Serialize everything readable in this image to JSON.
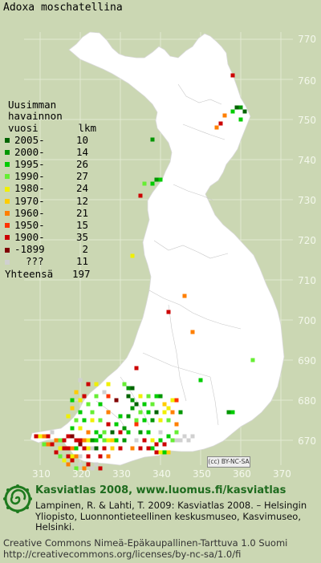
{
  "title": "Adoxa moschatellina",
  "legend": {
    "header_line1": "Uusimman",
    "header_line2": "havainnon",
    "header_col1": "vuosi",
    "header_col2": "lkm",
    "items": [
      {
        "label": "2005-",
        "count": "10",
        "color": "#006400"
      },
      {
        "label": "2000-",
        "count": "14",
        "color": "#009600"
      },
      {
        "label": "1995-",
        "count": "26",
        "color": "#00cc00"
      },
      {
        "label": "1990-",
        "count": "27",
        "color": "#66ee33"
      },
      {
        "label": "1980-",
        "count": "24",
        "color": "#f0f000"
      },
      {
        "label": "1970-",
        "count": "12",
        "color": "#ffcc00"
      },
      {
        "label": "1960-",
        "count": "21",
        "color": "#ff7f00"
      },
      {
        "label": "1950-",
        "count": "15",
        "color": "#ff3300"
      },
      {
        "label": "1900-",
        "count": "35",
        "color": "#cc0000"
      },
      {
        "label": "-1899",
        "count": "2",
        "color": "#800000"
      },
      {
        "label": "???",
        "count": "11",
        "color": "#d0d0d0"
      }
    ],
    "total_label": "Yhteensä",
    "total_count": "197"
  },
  "axes": {
    "y_ticks": [
      "770",
      "760",
      "750",
      "740",
      "730",
      "720",
      "710",
      "700",
      "690",
      "680",
      "670"
    ],
    "x_ticks": [
      "310",
      "320",
      "330",
      "340",
      "350",
      "360",
      "370"
    ]
  },
  "license_badge": "BY-NC-SA",
  "footer": {
    "title": "Kasviatlas 2008, www.luomus.fi/kasviatlas",
    "citation": "Lampinen, R. & Lahti, T. 2009: Kasviatlas 2008. – Helsingin Yliopisto, Luonnontieteellinen keskusmuseo, Kasvimuseo, Helsinki.",
    "license_line1": "Creative Commons Nimeä-Epäkaupallinen-Tarttuva 1.0 Suomi",
    "license_line2": "http://creativecommons.org/licenses/by-nc-sa/1.0/fi"
  },
  "chart_data": {
    "type": "scatter",
    "xlim": [
      305,
      375
    ],
    "ylim": [
      665,
      775
    ],
    "records": [
      {
        "x": 358,
        "y": 761,
        "c": 8
      },
      {
        "x": 359,
        "y": 753,
        "c": 0
      },
      {
        "x": 360,
        "y": 753,
        "c": 1
      },
      {
        "x": 361,
        "y": 752,
        "c": 0
      },
      {
        "x": 358,
        "y": 752,
        "c": 2
      },
      {
        "x": 356,
        "y": 751,
        "c": 6
      },
      {
        "x": 355,
        "y": 749,
        "c": 8
      },
      {
        "x": 354,
        "y": 748,
        "c": 6
      },
      {
        "x": 360,
        "y": 750,
        "c": 2
      },
      {
        "x": 338,
        "y": 745,
        "c": 1
      },
      {
        "x": 339,
        "y": 735,
        "c": 1
      },
      {
        "x": 338,
        "y": 734,
        "c": 2
      },
      {
        "x": 336,
        "y": 734,
        "c": 3
      },
      {
        "x": 340,
        "y": 735,
        "c": 2
      },
      {
        "x": 335,
        "y": 731,
        "c": 8
      },
      {
        "x": 333,
        "y": 716,
        "c": 4
      },
      {
        "x": 346,
        "y": 706,
        "c": 6
      },
      {
        "x": 342,
        "y": 702,
        "c": 8
      },
      {
        "x": 348,
        "y": 697,
        "c": 6
      },
      {
        "x": 363,
        "y": 690,
        "c": 3
      },
      {
        "x": 334,
        "y": 688,
        "c": 8
      },
      {
        "x": 350,
        "y": 685,
        "c": 2
      },
      {
        "x": 357,
        "y": 677,
        "c": 1
      },
      {
        "x": 358,
        "y": 677,
        "c": 2
      },
      {
        "x": 322,
        "y": 684,
        "c": 8
      },
      {
        "x": 324,
        "y": 684,
        "c": 4
      },
      {
        "x": 327,
        "y": 684,
        "c": 4
      },
      {
        "x": 331,
        "y": 684,
        "c": 3
      },
      {
        "x": 332,
        "y": 683,
        "c": 1
      },
      {
        "x": 333,
        "y": 683,
        "c": 0
      },
      {
        "x": 319,
        "y": 682,
        "c": 5
      },
      {
        "x": 321,
        "y": 681,
        "c": 8
      },
      {
        "x": 324,
        "y": 681,
        "c": 3
      },
      {
        "x": 327,
        "y": 681,
        "c": 7
      },
      {
        "x": 332,
        "y": 681,
        "c": 0
      },
      {
        "x": 333,
        "y": 680,
        "c": 1
      },
      {
        "x": 335,
        "y": 681,
        "c": 4
      },
      {
        "x": 337,
        "y": 681,
        "c": 3
      },
      {
        "x": 339,
        "y": 681,
        "c": 2
      },
      {
        "x": 340,
        "y": 681,
        "c": 1
      },
      {
        "x": 343,
        "y": 680,
        "c": 4
      },
      {
        "x": 344,
        "y": 680,
        "c": 7
      },
      {
        "x": 318,
        "y": 680,
        "c": 2
      },
      {
        "x": 320,
        "y": 680,
        "c": 4
      },
      {
        "x": 322,
        "y": 679,
        "c": 3
      },
      {
        "x": 325,
        "y": 679,
        "c": 2
      },
      {
        "x": 329,
        "y": 680,
        "c": 9
      },
      {
        "x": 334,
        "y": 679,
        "c": 0
      },
      {
        "x": 336,
        "y": 679,
        "c": 2
      },
      {
        "x": 338,
        "y": 679,
        "c": 3
      },
      {
        "x": 341,
        "y": 679,
        "c": 5
      },
      {
        "x": 342,
        "y": 678,
        "c": 4
      },
      {
        "x": 318,
        "y": 678,
        "c": 5
      },
      {
        "x": 320,
        "y": 677,
        "c": 2
      },
      {
        "x": 323,
        "y": 677,
        "c": 3
      },
      {
        "x": 327,
        "y": 677,
        "c": 6
      },
      {
        "x": 333,
        "y": 678,
        "c": 1
      },
      {
        "x": 335,
        "y": 677,
        "c": 3
      },
      {
        "x": 337,
        "y": 677,
        "c": 2
      },
      {
        "x": 339,
        "y": 677,
        "c": 0
      },
      {
        "x": 341,
        "y": 677,
        "c": 4
      },
      {
        "x": 343,
        "y": 677,
        "c": 6
      },
      {
        "x": 345,
        "y": 677,
        "c": 1
      },
      {
        "x": 317,
        "y": 676,
        "c": 4
      },
      {
        "x": 319,
        "y": 675,
        "c": 3
      },
      {
        "x": 321,
        "y": 675,
        "c": 2
      },
      {
        "x": 323,
        "y": 675,
        "c": 4
      },
      {
        "x": 325,
        "y": 675,
        "c": 3
      },
      {
        "x": 327,
        "y": 674,
        "c": 8
      },
      {
        "x": 329,
        "y": 674,
        "c": 2
      },
      {
        "x": 331,
        "y": 673,
        "c": 1
      },
      {
        "x": 334,
        "y": 675,
        "c": 3
      },
      {
        "x": 336,
        "y": 675,
        "c": 2
      },
      {
        "x": 338,
        "y": 675,
        "c": 1
      },
      {
        "x": 340,
        "y": 675,
        "c": 4
      },
      {
        "x": 342,
        "y": 675,
        "c": 3
      },
      {
        "x": 318,
        "y": 673,
        "c": 2
      },
      {
        "x": 320,
        "y": 673,
        "c": 4
      },
      {
        "x": 322,
        "y": 672,
        "c": 6
      },
      {
        "x": 324,
        "y": 672,
        "c": 2
      },
      {
        "x": 326,
        "y": 672,
        "c": 3
      },
      {
        "x": 328,
        "y": 672,
        "c": 0
      },
      {
        "x": 330,
        "y": 672,
        "c": 8
      },
      {
        "x": 332,
        "y": 672,
        "c": 2
      },
      {
        "x": 335,
        "y": 672,
        "c": 1
      },
      {
        "x": 337,
        "y": 672,
        "c": 2
      },
      {
        "x": 340,
        "y": 672,
        "c": 10
      },
      {
        "x": 342,
        "y": 671,
        "c": 2
      },
      {
        "x": 344,
        "y": 672,
        "c": 3
      },
      {
        "x": 346,
        "y": 671,
        "c": 10
      },
      {
        "x": 348,
        "y": 671,
        "c": 10
      },
      {
        "x": 309,
        "y": 671,
        "c": 8
      },
      {
        "x": 310,
        "y": 671,
        "c": 4
      },
      {
        "x": 311,
        "y": 671,
        "c": 6
      },
      {
        "x": 312,
        "y": 671,
        "c": 8
      },
      {
        "x": 313,
        "y": 672,
        "c": 10
      },
      {
        "x": 314,
        "y": 670,
        "c": 6
      },
      {
        "x": 315,
        "y": 670,
        "c": 3
      },
      {
        "x": 316,
        "y": 670,
        "c": 8
      },
      {
        "x": 317,
        "y": 671,
        "c": 8
      },
      {
        "x": 318,
        "y": 671,
        "c": 9
      },
      {
        "x": 319,
        "y": 670,
        "c": 8
      },
      {
        "x": 320,
        "y": 670,
        "c": 8
      },
      {
        "x": 321,
        "y": 670,
        "c": 6
      },
      {
        "x": 322,
        "y": 670,
        "c": 4
      },
      {
        "x": 323,
        "y": 670,
        "c": 1
      },
      {
        "x": 324,
        "y": 670,
        "c": 2
      },
      {
        "x": 325,
        "y": 671,
        "c": 2
      },
      {
        "x": 326,
        "y": 670,
        "c": 3
      },
      {
        "x": 327,
        "y": 670,
        "c": 4
      },
      {
        "x": 328,
        "y": 670,
        "c": 5
      },
      {
        "x": 329,
        "y": 670,
        "c": 2
      },
      {
        "x": 331,
        "y": 670,
        "c": 1
      },
      {
        "x": 334,
        "y": 670,
        "c": 10
      },
      {
        "x": 336,
        "y": 670,
        "c": 8
      },
      {
        "x": 338,
        "y": 670,
        "c": 4
      },
      {
        "x": 339,
        "y": 669,
        "c": 8
      },
      {
        "x": 340,
        "y": 670,
        "c": 2
      },
      {
        "x": 341,
        "y": 669,
        "c": 8
      },
      {
        "x": 343,
        "y": 670,
        "c": 3
      },
      {
        "x": 344,
        "y": 670,
        "c": 10
      },
      {
        "x": 311,
        "y": 669,
        "c": 3
      },
      {
        "x": 312,
        "y": 669,
        "c": 6
      },
      {
        "x": 313,
        "y": 669,
        "c": 8
      },
      {
        "x": 315,
        "y": 668,
        "c": 4
      },
      {
        "x": 316,
        "y": 668,
        "c": 8
      },
      {
        "x": 317,
        "y": 668,
        "c": 8
      },
      {
        "x": 318,
        "y": 668,
        "c": 6
      },
      {
        "x": 319,
        "y": 668,
        "c": 2
      },
      {
        "x": 320,
        "y": 669,
        "c": 9
      },
      {
        "x": 321,
        "y": 668,
        "c": 8
      },
      {
        "x": 322,
        "y": 668,
        "c": 4
      },
      {
        "x": 323,
        "y": 668,
        "c": 10
      },
      {
        "x": 324,
        "y": 668,
        "c": 0
      },
      {
        "x": 326,
        "y": 668,
        "c": 8
      },
      {
        "x": 328,
        "y": 668,
        "c": 5
      },
      {
        "x": 330,
        "y": 668,
        "c": 8
      },
      {
        "x": 333,
        "y": 668,
        "c": 6
      },
      {
        "x": 335,
        "y": 668,
        "c": 8
      },
      {
        "x": 337,
        "y": 668,
        "c": 8
      },
      {
        "x": 338,
        "y": 668,
        "c": 2
      },
      {
        "x": 340,
        "y": 667,
        "c": 4
      },
      {
        "x": 314,
        "y": 667,
        "c": 8
      },
      {
        "x": 315,
        "y": 666,
        "c": 3
      },
      {
        "x": 317,
        "y": 666,
        "c": 8
      },
      {
        "x": 318,
        "y": 666,
        "c": 4
      },
      {
        "x": 319,
        "y": 666,
        "c": 6
      },
      {
        "x": 320,
        "y": 666,
        "c": 10
      },
      {
        "x": 322,
        "y": 666,
        "c": 8
      },
      {
        "x": 325,
        "y": 666,
        "c": 8
      },
      {
        "x": 327,
        "y": 666,
        "c": 6
      },
      {
        "x": 339,
        "y": 667,
        "c": 8
      },
      {
        "x": 341,
        "y": 667,
        "c": 2
      },
      {
        "x": 342,
        "y": 667,
        "c": 5
      },
      {
        "x": 316,
        "y": 665,
        "c": 4
      },
      {
        "x": 318,
        "y": 665,
        "c": 8
      },
      {
        "x": 320,
        "y": 664,
        "c": 10
      },
      {
        "x": 322,
        "y": 664,
        "c": 8
      },
      {
        "x": 324,
        "y": 664,
        "c": 10
      },
      {
        "x": 317,
        "y": 664,
        "c": 6
      },
      {
        "x": 319,
        "y": 663,
        "c": 3
      },
      {
        "x": 321,
        "y": 663,
        "c": 6
      },
      {
        "x": 323,
        "y": 663,
        "c": 10
      },
      {
        "x": 325,
        "y": 663,
        "c": 8
      },
      {
        "x": 334,
        "y": 674,
        "c": 7
      },
      {
        "x": 332,
        "y": 676,
        "c": 1
      },
      {
        "x": 330,
        "y": 676,
        "c": 2
      },
      {
        "x": 344,
        "y": 674,
        "c": 6
      },
      {
        "x": 345,
        "y": 670,
        "c": 10
      },
      {
        "x": 347,
        "y": 670,
        "c": 10
      },
      {
        "x": 320,
        "y": 685,
        "c": 10
      },
      {
        "x": 326,
        "y": 682,
        "c": 10
      }
    ]
  }
}
